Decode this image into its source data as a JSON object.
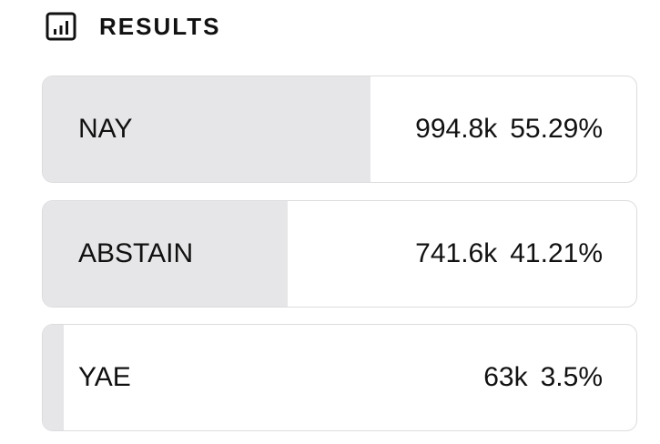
{
  "header": {
    "title": "RESULTS"
  },
  "results": [
    {
      "label": "NAY",
      "votes": "994.8k",
      "share": {
        "value": 55.29,
        "label": "55.29%"
      }
    },
    {
      "label": "ABSTAIN",
      "votes": "741.6k",
      "share": {
        "value": 41.21,
        "label": "41.21%"
      }
    },
    {
      "label": "YAE",
      "votes": "63k",
      "share": {
        "value": 3.5,
        "label": "3.5%"
      }
    }
  ]
}
